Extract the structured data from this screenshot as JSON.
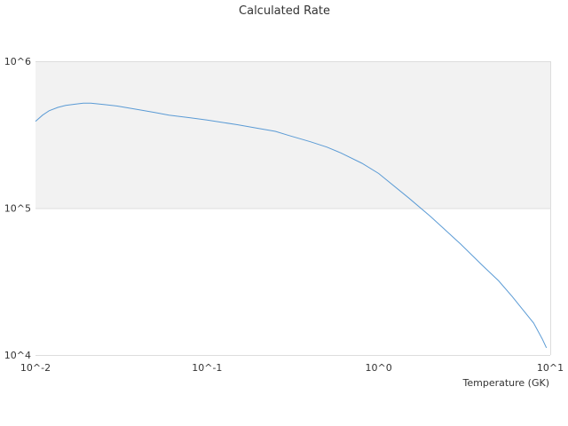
{
  "chart_data": {
    "type": "line",
    "title": "Calculated Rate",
    "xlabel": "Temperature (GK)",
    "ylabel": "",
    "x_scale": "log",
    "y_scale": "log",
    "xlim": [
      0.01,
      10
    ],
    "ylim": [
      10000,
      1000000
    ],
    "x_ticks": [
      "10^-2",
      "10^-1",
      "10^0",
      "10^1"
    ],
    "x_tick_values": [
      0.01,
      0.1,
      1,
      10
    ],
    "y_ticks": [
      "10^4",
      "10^5",
      "10^6"
    ],
    "y_tick_values": [
      10000,
      100000,
      1000000
    ],
    "grid": true,
    "band_fill": "#f2f2f2",
    "gridline_color": "#dddddd",
    "series": [
      {
        "color": "#5b9bd5",
        "x": [
          0.01,
          0.011,
          0.012,
          0.0135,
          0.015,
          0.017,
          0.019,
          0.021,
          0.025,
          0.03,
          0.04,
          0.05,
          0.06,
          0.08,
          0.1,
          0.12,
          0.15,
          0.2,
          0.25,
          0.3,
          0.4,
          0.5,
          0.6,
          0.8,
          1.0,
          1.5,
          2.0,
          3.0,
          4.0,
          5.0,
          6.0,
          7.0,
          8.0,
          9.0,
          9.5
        ],
        "y": [
          390000,
          430000,
          460000,
          485000,
          500000,
          510000,
          518000,
          518000,
          508000,
          495000,
          468000,
          447000,
          430000,
          412000,
          398000,
          385000,
          370000,
          349000,
          333000,
          312000,
          283000,
          260000,
          238000,
          202000,
          172000,
          117000,
          88000,
          57000,
          41000,
          32000,
          25000,
          20000,
          16500,
          12800,
          11200
        ]
      }
    ]
  }
}
